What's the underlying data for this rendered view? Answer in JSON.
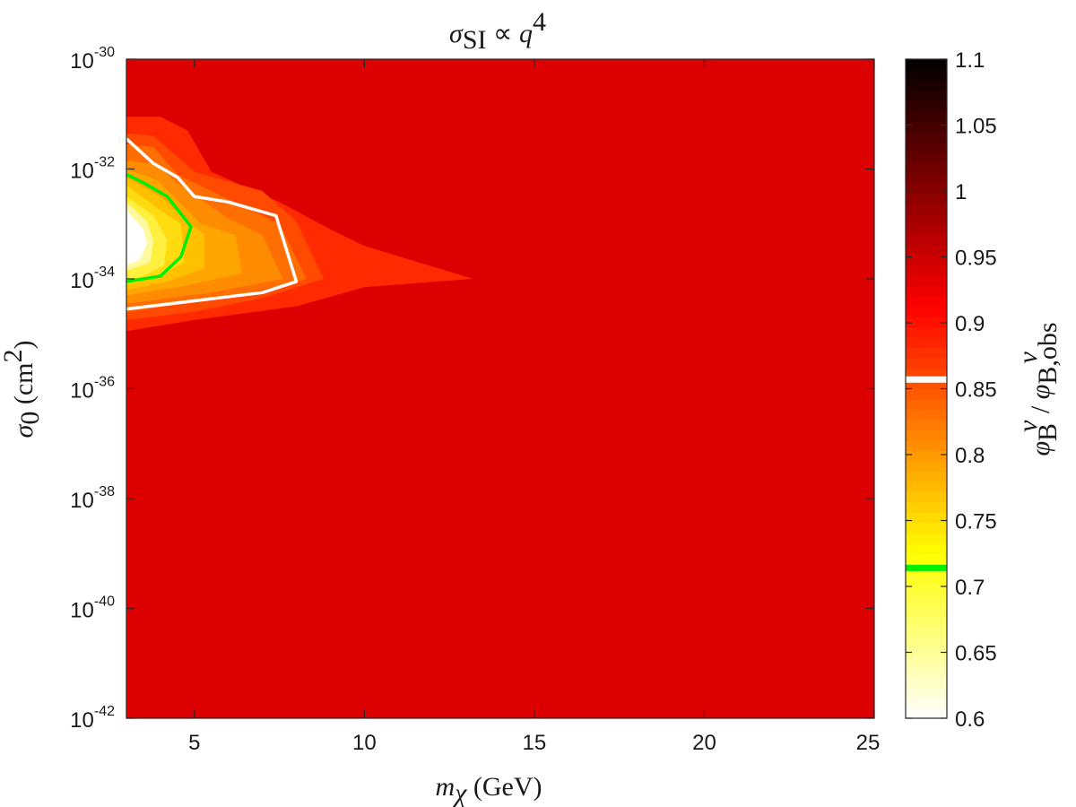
{
  "chart_data": {
    "type": "heatmap",
    "title": "σSI ∝ q⁴",
    "xlabel": "mχ (GeV)",
    "ylabel": "σ0 (cm²)",
    "x_range": [
      3,
      25
    ],
    "y_log_range": [
      -42,
      -30
    ],
    "x_ticks": [
      5,
      10,
      15,
      20,
      25
    ],
    "y_ticks": [
      {
        "exp": -42,
        "label": "10",
        "sup": "-42"
      },
      {
        "exp": -40,
        "label": "10",
        "sup": "-40"
      },
      {
        "exp": -38,
        "label": "10",
        "sup": "-38"
      },
      {
        "exp": -36,
        "label": "10",
        "sup": "-36"
      },
      {
        "exp": -34,
        "label": "10",
        "sup": "-34"
      },
      {
        "exp": -32,
        "label": "10",
        "sup": "-32"
      },
      {
        "exp": -30,
        "label": "10",
        "sup": "-30"
      }
    ],
    "background_value": 0.95,
    "filled_contours": [
      {
        "level": 0.93,
        "color": "#ff2a00",
        "points": [
          [
            3,
            -31.05
          ],
          [
            4,
            -31.05
          ],
          [
            4.8,
            -31.3
          ],
          [
            5.5,
            -32.05
          ],
          [
            7.5,
            -32.6
          ],
          [
            9,
            -33.1
          ],
          [
            10,
            -33.4
          ],
          [
            13.2,
            -34.0
          ],
          [
            10,
            -34.15
          ],
          [
            8,
            -34.5
          ],
          [
            5,
            -34.75
          ],
          [
            3,
            -34.95
          ]
        ]
      },
      {
        "level": 0.9,
        "color": "#ff4a00",
        "points": [
          [
            3,
            -31.35
          ],
          [
            3.8,
            -31.4
          ],
          [
            5,
            -32.05
          ],
          [
            7,
            -32.4
          ],
          [
            8,
            -32.95
          ],
          [
            8.8,
            -34.0
          ],
          [
            7,
            -34.35
          ],
          [
            5,
            -34.6
          ],
          [
            3,
            -34.75
          ]
        ]
      },
      {
        "level": 0.87,
        "color": "#ff6e00",
        "points": [
          [
            3,
            -31.55
          ],
          [
            3.8,
            -31.6
          ],
          [
            4.5,
            -32.1
          ],
          [
            6,
            -32.55
          ],
          [
            7.5,
            -33.0
          ],
          [
            8.3,
            -34.0
          ],
          [
            6,
            -34.35
          ],
          [
            3,
            -34.6
          ]
        ]
      },
      {
        "level": 0.84,
        "color": "#ff8c00",
        "points": [
          [
            3,
            -31.85
          ],
          [
            3.8,
            -31.9
          ],
          [
            4.6,
            -32.3
          ],
          [
            6,
            -32.9
          ],
          [
            7,
            -33.2
          ],
          [
            7.6,
            -34.0
          ],
          [
            5.5,
            -34.25
          ],
          [
            3,
            -34.45
          ]
        ]
      },
      {
        "level": 0.8,
        "color": "#ffa500",
        "points": [
          [
            3,
            -32.0
          ],
          [
            3.9,
            -32.2
          ],
          [
            5.2,
            -33.0
          ],
          [
            6.2,
            -33.2
          ],
          [
            6.4,
            -33.9
          ],
          [
            4.5,
            -34.15
          ],
          [
            3,
            -34.3
          ]
        ]
      },
      {
        "level": 0.77,
        "color": "#ffc000",
        "points": [
          [
            3,
            -32.15
          ],
          [
            4,
            -32.5
          ],
          [
            4.8,
            -32.95
          ],
          [
            5.3,
            -33.2
          ],
          [
            5.3,
            -33.8
          ],
          [
            4.2,
            -34.05
          ],
          [
            3,
            -34.2
          ]
        ]
      },
      {
        "level": 0.74,
        "color": "#ffdc10",
        "points": [
          [
            3,
            -32.3
          ],
          [
            4,
            -32.75
          ],
          [
            4.6,
            -33.0
          ],
          [
            4.7,
            -33.7
          ],
          [
            3.8,
            -34.0
          ],
          [
            3,
            -34.1
          ]
        ]
      },
      {
        "level": 0.7,
        "color": "#fff040",
        "points": [
          [
            3,
            -32.5
          ],
          [
            3.8,
            -32.85
          ],
          [
            4.2,
            -33.3
          ],
          [
            4.1,
            -33.75
          ],
          [
            3.5,
            -33.95
          ],
          [
            3,
            -34.0
          ]
        ]
      },
      {
        "level": 0.66,
        "color": "#fffaa0",
        "points": [
          [
            3,
            -32.6
          ],
          [
            3.6,
            -32.95
          ],
          [
            3.8,
            -33.3
          ],
          [
            3.7,
            -33.7
          ],
          [
            3,
            -33.85
          ]
        ]
      },
      {
        "level": 0.62,
        "color": "#ffffff",
        "points": [
          [
            3,
            -32.75
          ],
          [
            3.5,
            -33.1
          ],
          [
            3.6,
            -33.35
          ],
          [
            3.4,
            -33.65
          ],
          [
            3,
            -33.75
          ]
        ]
      }
    ],
    "threshold_lines": [
      {
        "value": 0.857,
        "color": "#ffffff",
        "points": [
          [
            3,
            -31.45
          ],
          [
            3.8,
            -31.9
          ],
          [
            4.5,
            -32.15
          ],
          [
            5,
            -32.5
          ],
          [
            6,
            -32.6
          ],
          [
            7.4,
            -32.85
          ],
          [
            8,
            -34.05
          ],
          [
            7,
            -34.25
          ],
          [
            5,
            -34.4
          ],
          [
            3,
            -34.55
          ]
        ]
      },
      {
        "value": 0.714,
        "color": "#00ee00",
        "points": [
          [
            3,
            -32.1
          ],
          [
            3.5,
            -32.25
          ],
          [
            4.2,
            -32.5
          ],
          [
            4.9,
            -33.05
          ],
          [
            4.6,
            -33.6
          ],
          [
            4,
            -33.95
          ],
          [
            3,
            -34.05
          ]
        ]
      }
    ],
    "colorbar": {
      "label": "φBν / φB,obsν",
      "range": [
        0.6,
        1.1
      ],
      "ticks": [
        "0.6",
        "0.65",
        "0.7",
        "0.75",
        "0.8",
        "0.85",
        "0.9",
        "0.95",
        "1",
        "1.05",
        "1.1"
      ],
      "colormap": "hot-reversed",
      "markers": [
        {
          "value": 0.857,
          "color": "#ffffff"
        },
        {
          "value": 0.714,
          "color": "#00ee00"
        }
      ]
    }
  }
}
